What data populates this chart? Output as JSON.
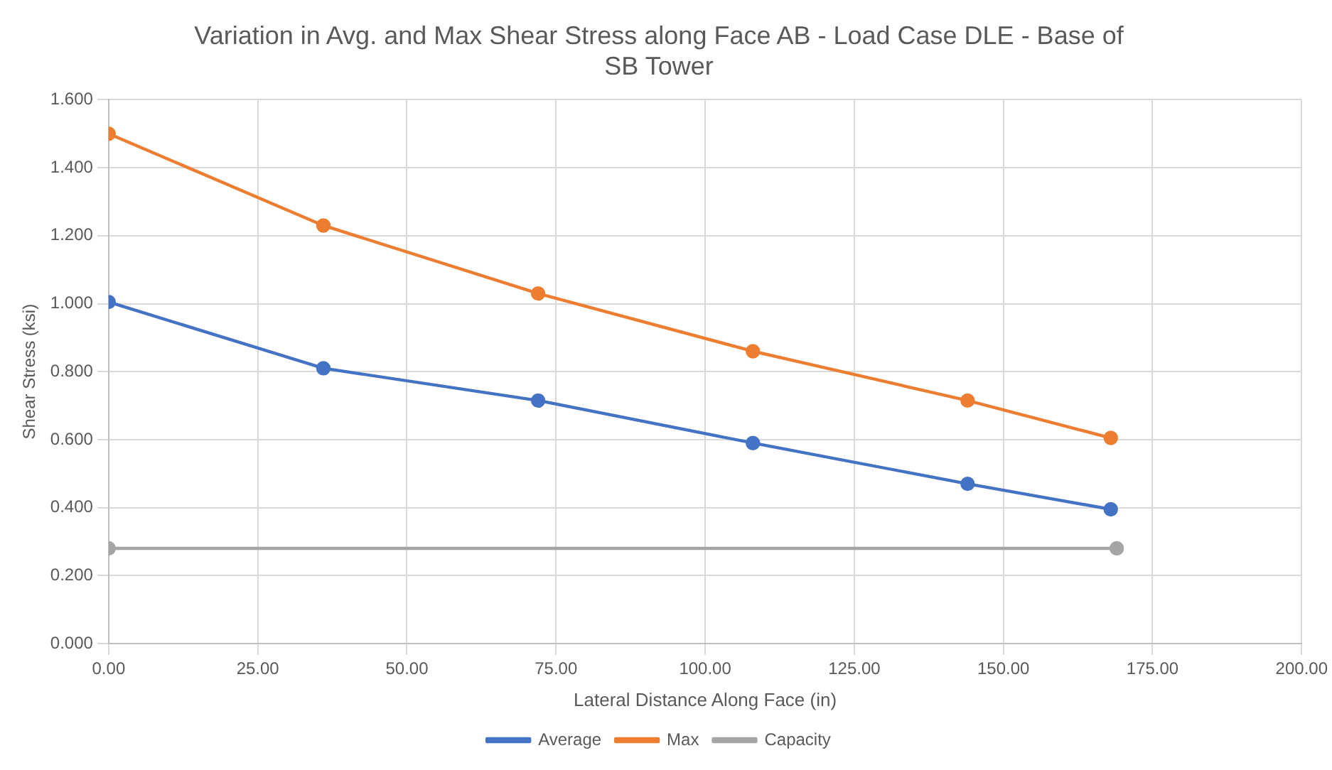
{
  "chart_data": {
    "type": "line",
    "title": "Variation in Avg. and Max Shear Stress along Face AB - Load Case DLE - Base of SB Tower",
    "xlabel": "Lateral Distance Along Face (in)",
    "ylabel": "Shear Stress (ksi)",
    "series": [
      {
        "name": "Average",
        "color": "#4472c4",
        "x": [
          0,
          36,
          72,
          108,
          144,
          168
        ],
        "values": [
          1.005,
          0.81,
          0.715,
          0.59,
          0.47,
          0.395
        ]
      },
      {
        "name": "Max",
        "color": "#ed7d31",
        "x": [
          0,
          36,
          72,
          108,
          144,
          168
        ],
        "values": [
          1.5,
          1.23,
          1.03,
          0.86,
          0.715,
          0.605
        ]
      },
      {
        "name": "Capacity",
        "color": "#a5a5a5",
        "x": [
          0,
          169
        ],
        "values": [
          0.28,
          0.28
        ]
      }
    ],
    "xlim": [
      0,
      200
    ],
    "xticks": [
      {
        "value": 0,
        "label": "0.00"
      },
      {
        "value": 25,
        "label": "25.00"
      },
      {
        "value": 50,
        "label": "50.00"
      },
      {
        "value": 75,
        "label": "75.00"
      },
      {
        "value": 100,
        "label": "100.00"
      },
      {
        "value": 125,
        "label": "125.00"
      },
      {
        "value": 150,
        "label": "150.00"
      },
      {
        "value": 175,
        "label": "175.00"
      },
      {
        "value": 200,
        "label": "200.00"
      }
    ],
    "ylim": [
      0,
      1.6
    ],
    "yticks": [
      {
        "value": 0,
        "label": "0.000"
      },
      {
        "value": 0.2,
        "label": "0.200"
      },
      {
        "value": 0.4,
        "label": "0.400"
      },
      {
        "value": 0.6,
        "label": "0.600"
      },
      {
        "value": 0.8,
        "label": "0.800"
      },
      {
        "value": 1.0,
        "label": "1.000"
      },
      {
        "value": 1.2,
        "label": "1.200"
      },
      {
        "value": 1.4,
        "label": "1.400"
      },
      {
        "value": 1.6,
        "label": "1.600"
      }
    ],
    "grid": true,
    "legend": "bottom",
    "marker": "circle",
    "line_style": "solid"
  }
}
